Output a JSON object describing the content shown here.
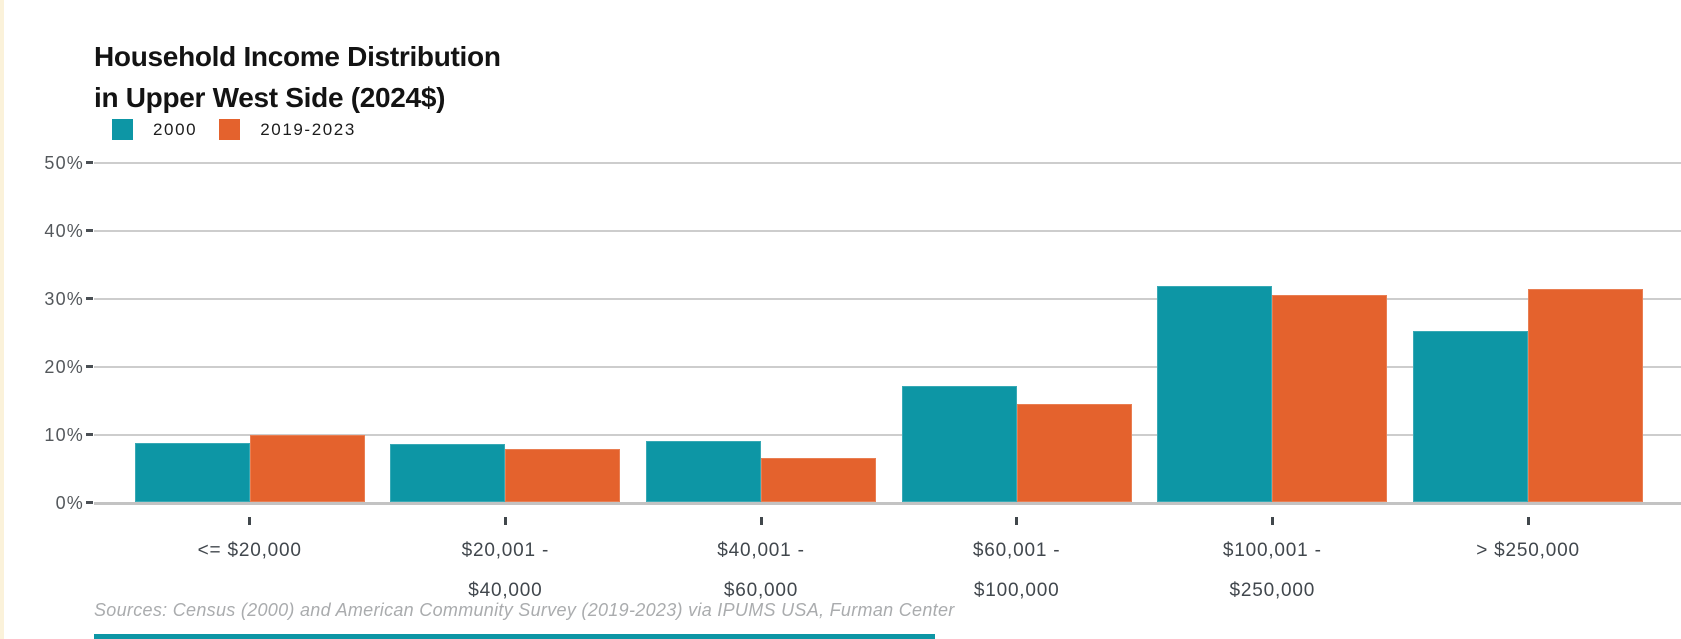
{
  "title": {
    "line1": "Household Income Distribution",
    "line2": "in Upper West Side (2024$)"
  },
  "legend": [
    {
      "label": "2000",
      "color": "#0d96a5"
    },
    {
      "label": "2019-2023",
      "color": "#e4622d"
    }
  ],
  "sources": "Sources: Census (2000) and American Community Survey (2019-2023) via IPUMS USA, Furman Center",
  "colors": {
    "teal": "#0d96a5",
    "orange": "#e4622d",
    "gridline": "#cdcdcd",
    "axis_line": "#c3c3c3",
    "y_label_text": "#54585c",
    "x_label_text": "#41474d",
    "title_text": "#131313",
    "sources_text": "#aaacae",
    "page_edge_cream": "#fbf2da"
  },
  "chart_data": {
    "type": "bar",
    "title": "Household Income Distribution in Upper West Side (2024$)",
    "categories": [
      "<= $20,000",
      "$20,001 - $40,000",
      "$40,001 - $60,000",
      "$60,001 - $100,000",
      "$100,001 - $250,000",
      "> $250,000"
    ],
    "category_label_lines": [
      [
        "<= $20,000"
      ],
      [
        "$20,001 -",
        "$40,000"
      ],
      [
        "$40,001 -",
        "$60,000"
      ],
      [
        "$60,001 -",
        "$100,000"
      ],
      [
        "$100,001 -",
        "$250,000"
      ],
      [
        "> $250,000"
      ]
    ],
    "series": [
      {
        "name": "2000",
        "color": "#0d96a5",
        "values": [
          8.7,
          8.6,
          8.9,
          17.0,
          31.7,
          25.2
        ]
      },
      {
        "name": "2019-2023",
        "color": "#e4622d",
        "values": [
          9.8,
          7.8,
          6.4,
          14.4,
          30.5,
          31.3
        ]
      }
    ],
    "xlabel": "",
    "ylabel": "",
    "ylim": [
      0,
      50
    ],
    "y_ticks": [
      {
        "label": "50%",
        "value": 50
      },
      {
        "label": "40%",
        "value": 40
      },
      {
        "label": "30%",
        "value": 30
      },
      {
        "label": "20%",
        "value": 20
      },
      {
        "label": "10%",
        "value": 10
      },
      {
        "label": "0%",
        "value": 0
      }
    ],
    "grid": true,
    "legend_position": "top-left",
    "bar_units": "percent of households"
  }
}
